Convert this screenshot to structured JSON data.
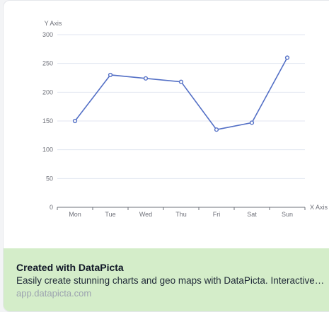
{
  "chart_data": {
    "type": "line",
    "categories": [
      "Mon",
      "Tue",
      "Wed",
      "Thu",
      "Fri",
      "Sat",
      "Sun"
    ],
    "values": [
      150,
      230,
      224,
      218,
      135,
      147,
      260
    ],
    "xlabel": "X Axis",
    "ylabel": "Y Axis",
    "ylim": [
      0,
      300
    ],
    "yticks": [
      0,
      50,
      100,
      150,
      200,
      250,
      300
    ],
    "grid": true,
    "line_color": "#5470c6"
  },
  "footer": {
    "title": "Created with DataPicta",
    "description": "Easily create stunning charts and geo maps with DataPicta. Interactive charts, infographics and maps for everyone.",
    "url": "app.datapicta.com",
    "background": "#d4edc9"
  }
}
